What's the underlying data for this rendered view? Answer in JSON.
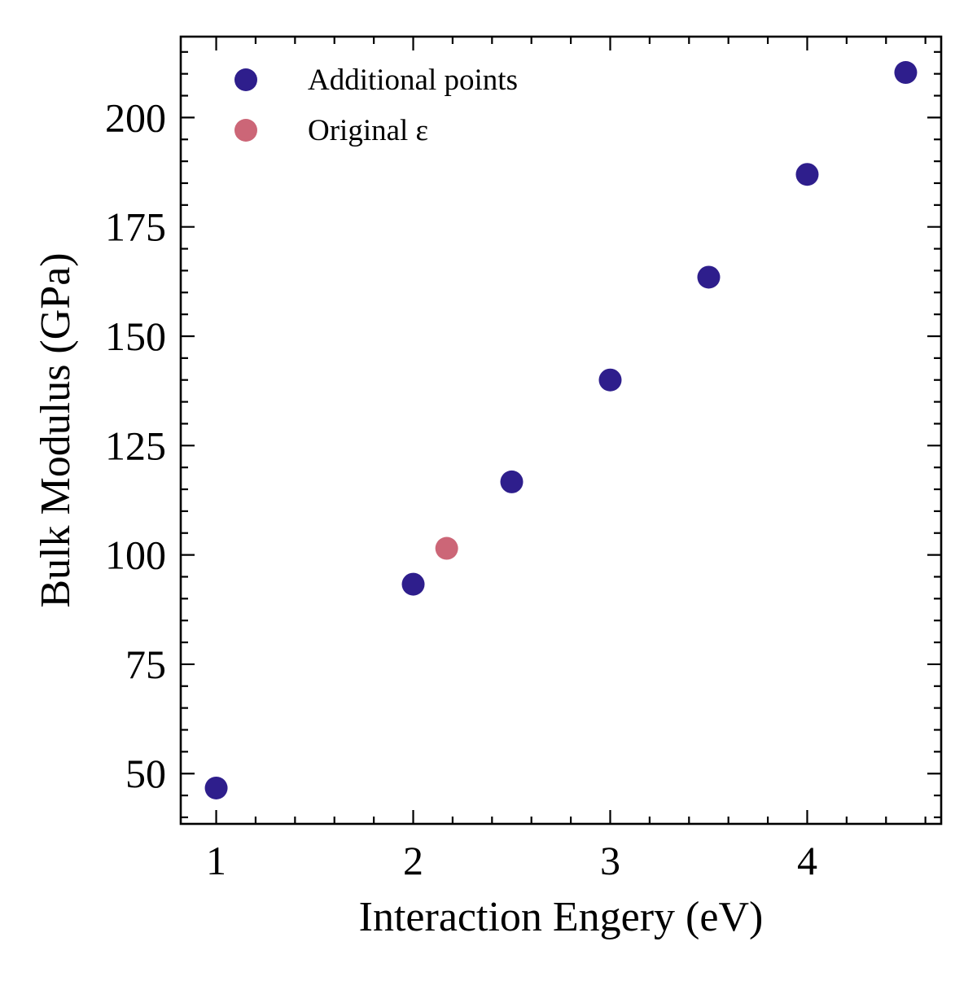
{
  "chart_data": {
    "type": "scatter",
    "title": "",
    "xlabel": "Interaction Engery (eV)",
    "ylabel": "Bulk Modulus (GPa)",
    "xlim": [
      0.82,
      4.68
    ],
    "ylim": [
      38.5,
      218.5
    ],
    "x_ticks": [
      1,
      2,
      3,
      4
    ],
    "x_tick_labels": [
      "1",
      "2",
      "3",
      "4"
    ],
    "x_minor_step": 0.2,
    "y_ticks": [
      50,
      75,
      100,
      125,
      150,
      175,
      200
    ],
    "y_tick_labels": [
      "50",
      "75",
      "100",
      "125",
      "150",
      "175",
      "200"
    ],
    "y_minor_step": 5,
    "tick_direction": "in",
    "ticks_on_all_sides": true,
    "grid": false,
    "legend_position": "top-left",
    "legend_frame": false,
    "series": [
      {
        "name": "Additional points",
        "color": "#2e1e8c",
        "x": [
          1.0,
          2.0,
          2.5,
          3.0,
          3.5,
          4.0,
          4.5
        ],
        "y": [
          46.7,
          93.3,
          116.7,
          140.0,
          163.5,
          187.0,
          210.3
        ]
      },
      {
        "name": "Original ε",
        "color": "#cc6677",
        "x": [
          2.17
        ],
        "y": [
          101.5
        ]
      }
    ]
  }
}
